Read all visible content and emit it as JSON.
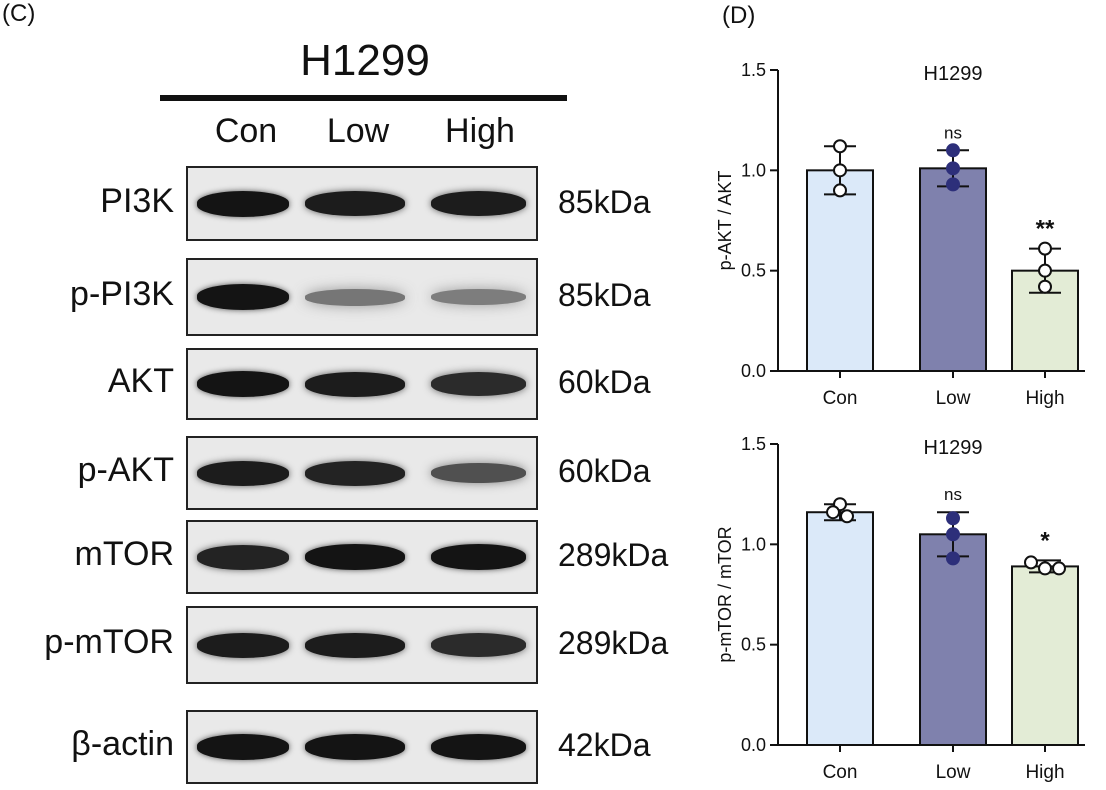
{
  "panel_c": {
    "label": "(C)",
    "title": "H1299",
    "lanes": [
      "Con",
      "Low",
      "High"
    ],
    "blots": [
      {
        "protein": "PI3K",
        "kda": "85kDa",
        "intensity": [
          1.0,
          0.95,
          0.95
        ]
      },
      {
        "protein": "p-PI3K",
        "kda": "85kDa",
        "intensity": [
          1.0,
          0.35,
          0.3
        ]
      },
      {
        "protein": "AKT",
        "kda": "60kDa",
        "intensity": [
          1.0,
          0.95,
          0.85
        ]
      },
      {
        "protein": "p-AKT",
        "kda": "60kDa",
        "intensity": [
          0.95,
          0.9,
          0.6
        ]
      },
      {
        "protein": "mTOR",
        "kda": "289kDa",
        "intensity": [
          0.9,
          1.0,
          1.0
        ]
      },
      {
        "protein": "p-mTOR",
        "kda": "289kDa",
        "intensity": [
          0.95,
          0.95,
          0.85
        ]
      },
      {
        "protein": "β-actin",
        "kda": "42kDa",
        "intensity": [
          1.0,
          1.0,
          1.0
        ]
      }
    ]
  },
  "panel_d": {
    "label": "(D)"
  },
  "colors": {
    "con": "#dbe9f9",
    "low": "#7f81ad",
    "high": "#e3ecd6",
    "dot_filled": "#2d2f7a",
    "axis": "#111111"
  },
  "chart_data": [
    {
      "type": "bar",
      "title": "H1299",
      "ylabel": "p-AKT / AKT",
      "xlabel": "",
      "categories": [
        "Con",
        "Low",
        "High"
      ],
      "values": [
        1.0,
        1.01,
        0.5
      ],
      "error": [
        0.12,
        0.09,
        0.11
      ],
      "points": [
        [
          1.12,
          1.0,
          0.9
        ],
        [
          1.1,
          1.01,
          0.93
        ],
        [
          0.61,
          0.5,
          0.42
        ]
      ],
      "point_style": [
        "open",
        "filled",
        "open"
      ],
      "significance": [
        "",
        "ns",
        "**"
      ],
      "ylim": [
        0,
        1.5
      ],
      "yticks": [
        "0.0",
        "0.5",
        "1.0",
        "1.5"
      ]
    },
    {
      "type": "bar",
      "title": "H1299",
      "ylabel": "p-mTOR / mTOR",
      "xlabel": "",
      "categories": [
        "Con",
        "Low",
        "High"
      ],
      "values": [
        1.16,
        1.05,
        0.89
      ],
      "error": [
        0.04,
        0.11,
        0.03
      ],
      "points": [
        [
          1.2,
          1.16,
          1.14
        ],
        [
          1.13,
          1.05,
          0.93
        ],
        [
          0.91,
          0.88,
          0.88
        ]
      ],
      "point_style": [
        "open",
        "filled",
        "open"
      ],
      "significance": [
        "",
        "ns",
        "*"
      ],
      "ylim": [
        0,
        1.5
      ],
      "yticks": [
        "0.0",
        "0.5",
        "1.0",
        "1.5"
      ]
    }
  ]
}
